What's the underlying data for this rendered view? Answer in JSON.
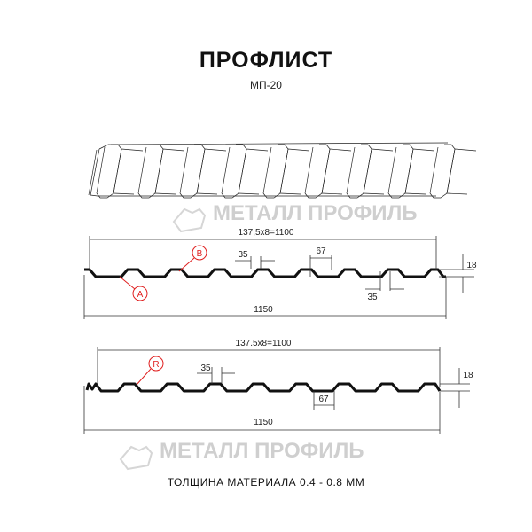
{
  "title": "ПРОФЛИСТ",
  "subtitle": "МП-20",
  "footer": "ТОЛЩИНА МАТЕРИАЛА 0.4 - 0.8 ММ",
  "watermark": "МЕТАЛЛ ПРОФИЛЬ",
  "diagram1": {
    "pitch_dim": "137,5х8=1100",
    "width_dim": "1150",
    "rib_top_dim": "35",
    "rib_bottom_dim": "35",
    "valley_dim": "67",
    "height_dim": "18",
    "label_a": "A",
    "label_b": "B"
  },
  "diagram2": {
    "pitch_dim": "137.5x8=1100",
    "width_dim": "1150",
    "rib_top_dim": "35",
    "valley_dim": "67",
    "height_dim": "18",
    "label_r": "R"
  },
  "colors": {
    "accent": "#e02020",
    "profile": "#111111",
    "watermark": "#cfcfcf"
  }
}
